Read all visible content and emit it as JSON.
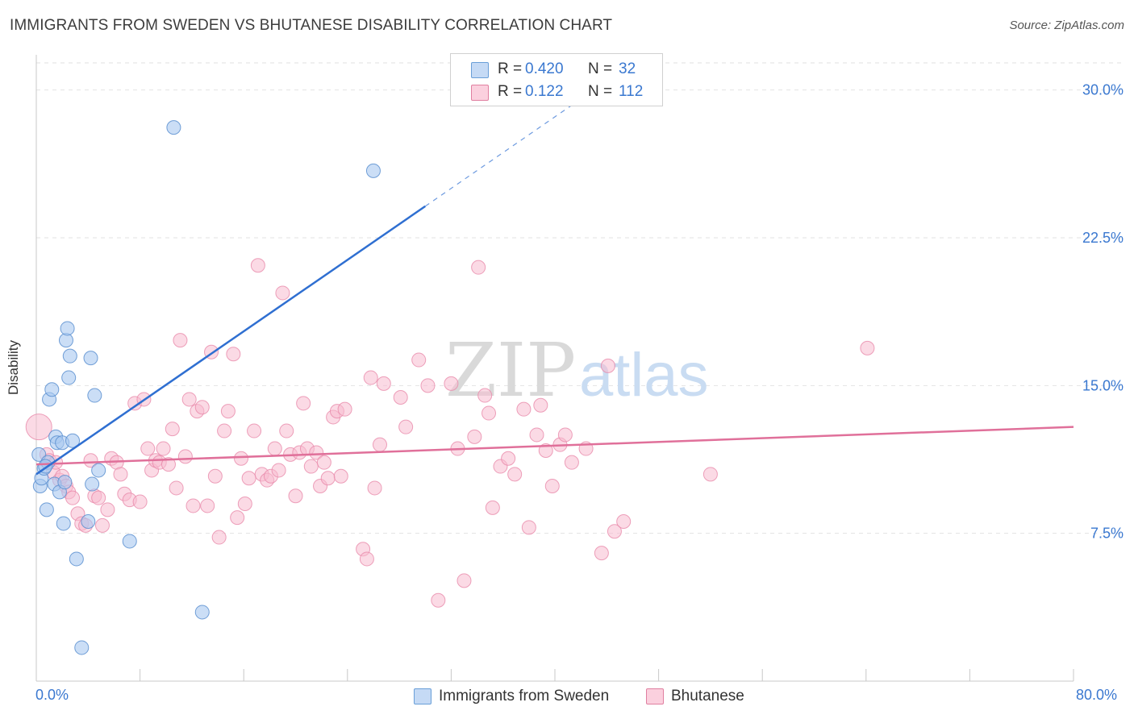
{
  "header": {
    "title": "IMMIGRANTS FROM SWEDEN VS BHUTANESE DISABILITY CORRELATION CHART",
    "source": "Source: ZipAtlas.com"
  },
  "watermark": {
    "zip": "ZIP",
    "atlas": "atlas"
  },
  "legend": {
    "rows": [
      {
        "r_label": "R =",
        "r_value": "0.420",
        "n_label": "N =",
        "n_value": "32",
        "color": "#a8c8f0",
        "border": "#6a9fd8"
      },
      {
        "r_label": "R =",
        "r_value": "0.122",
        "n_label": "N =",
        "n_value": "112",
        "color": "#f7bcd0",
        "border": "#e07fa0"
      }
    ]
  },
  "colors": {
    "sweden_fill": "#a8c8f0",
    "sweden_stroke": "#5b8fd0",
    "sweden_line": "#2f6fd1",
    "bhutanese_fill": "#f7bcd0",
    "bhutanese_stroke": "#e889aa",
    "bhutanese_line": "#e0709a",
    "axis_text": "#3a78d0",
    "grid": "#e2e2e2"
  },
  "chart_data": {
    "type": "scatter",
    "title": "IMMIGRANTS FROM SWEDEN VS BHUTANESE DISABILITY CORRELATION CHART",
    "xlabel": "",
    "ylabel": "Disability",
    "xlim": [
      0,
      80
    ],
    "ylim": [
      0,
      31.5
    ],
    "x_tick_labels": [
      "0.0%",
      "80.0%"
    ],
    "y_ticks": [
      7.5,
      15.0,
      22.5,
      30.0
    ],
    "y_tick_labels": [
      "7.5%",
      "15.0%",
      "22.5%",
      "30.0%"
    ],
    "grid": true,
    "legend_position": "top-center",
    "series": [
      {
        "name": "Immigrants from Sweden",
        "r": 0.42,
        "n": 32,
        "trend": {
          "x": [
            0,
            30
          ],
          "y": [
            10.5,
            24.1
          ]
        },
        "trend_dashed": {
          "x": [
            30,
            43
          ],
          "y": [
            24.1,
            30.0
          ]
        },
        "points": [
          [
            0.2,
            11.5
          ],
          [
            0.3,
            9.9
          ],
          [
            0.4,
            10.3
          ],
          [
            0.6,
            10.8
          ],
          [
            0.8,
            8.7
          ],
          [
            0.9,
            11.1
          ],
          [
            1.0,
            14.3
          ],
          [
            1.2,
            14.8
          ],
          [
            1.4,
            10.0
          ],
          [
            1.5,
            12.4
          ],
          [
            1.6,
            12.1
          ],
          [
            1.8,
            9.6
          ],
          [
            2.0,
            12.1
          ],
          [
            2.1,
            8.0
          ],
          [
            2.2,
            10.1
          ],
          [
            2.3,
            17.3
          ],
          [
            2.4,
            17.9
          ],
          [
            2.5,
            15.4
          ],
          [
            2.6,
            16.5
          ],
          [
            2.8,
            12.2
          ],
          [
            3.1,
            6.2
          ],
          [
            3.5,
            1.7
          ],
          [
            4.0,
            8.1
          ],
          [
            4.2,
            16.4
          ],
          [
            4.3,
            10.0
          ],
          [
            4.5,
            14.5
          ],
          [
            4.8,
            10.7
          ],
          [
            7.2,
            7.1
          ],
          [
            10.6,
            28.1
          ],
          [
            12.8,
            3.5
          ],
          [
            26.0,
            25.9
          ],
          [
            0.7,
            10.9
          ]
        ]
      },
      {
        "name": "Bhutanese",
        "r": 0.122,
        "n": 112,
        "trend": {
          "x": [
            0,
            80
          ],
          "y": [
            11.0,
            12.9
          ]
        },
        "points": [
          [
            0.2,
            12.9
          ],
          [
            0.8,
            11.5
          ],
          [
            1.0,
            11.2
          ],
          [
            1.3,
            10.6
          ],
          [
            1.5,
            11.1
          ],
          [
            1.8,
            10.2
          ],
          [
            2.0,
            10.4
          ],
          [
            2.3,
            9.9
          ],
          [
            2.5,
            9.6
          ],
          [
            2.8,
            9.3
          ],
          [
            3.2,
            8.5
          ],
          [
            3.5,
            8.0
          ],
          [
            3.8,
            7.9
          ],
          [
            4.2,
            11.2
          ],
          [
            4.5,
            9.4
          ],
          [
            4.8,
            9.3
          ],
          [
            5.1,
            7.9
          ],
          [
            5.5,
            8.7
          ],
          [
            5.8,
            11.3
          ],
          [
            6.2,
            11.1
          ],
          [
            6.5,
            10.5
          ],
          [
            6.8,
            9.5
          ],
          [
            7.2,
            9.2
          ],
          [
            7.6,
            14.1
          ],
          [
            8.0,
            9.1
          ],
          [
            8.3,
            14.3
          ],
          [
            8.6,
            11.8
          ],
          [
            8.9,
            10.7
          ],
          [
            9.2,
            11.2
          ],
          [
            9.5,
            11.1
          ],
          [
            9.8,
            11.8
          ],
          [
            10.2,
            11.0
          ],
          [
            10.5,
            12.8
          ],
          [
            10.8,
            9.8
          ],
          [
            11.1,
            17.3
          ],
          [
            11.5,
            11.4
          ],
          [
            11.8,
            14.3
          ],
          [
            12.1,
            8.9
          ],
          [
            12.4,
            13.7
          ],
          [
            12.8,
            13.9
          ],
          [
            13.2,
            8.9
          ],
          [
            13.5,
            16.7
          ],
          [
            13.8,
            10.4
          ],
          [
            14.1,
            7.3
          ],
          [
            14.5,
            12.7
          ],
          [
            14.8,
            13.7
          ],
          [
            15.2,
            16.6
          ],
          [
            15.5,
            8.3
          ],
          [
            15.8,
            11.3
          ],
          [
            16.1,
            9.0
          ],
          [
            16.4,
            10.3
          ],
          [
            16.8,
            12.7
          ],
          [
            17.1,
            21.1
          ],
          [
            17.4,
            10.5
          ],
          [
            17.8,
            10.2
          ],
          [
            18.1,
            10.4
          ],
          [
            18.4,
            11.8
          ],
          [
            18.7,
            10.7
          ],
          [
            19.0,
            19.7
          ],
          [
            19.3,
            12.7
          ],
          [
            19.6,
            11.5
          ],
          [
            20.0,
            9.4
          ],
          [
            20.3,
            11.6
          ],
          [
            20.6,
            14.1
          ],
          [
            20.9,
            11.8
          ],
          [
            21.2,
            10.9
          ],
          [
            21.6,
            11.6
          ],
          [
            21.9,
            9.9
          ],
          [
            22.2,
            11.1
          ],
          [
            22.5,
            10.3
          ],
          [
            22.9,
            13.4
          ],
          [
            23.2,
            13.7
          ],
          [
            23.5,
            10.4
          ],
          [
            23.8,
            13.8
          ],
          [
            25.2,
            6.7
          ],
          [
            25.5,
            6.2
          ],
          [
            25.8,
            15.4
          ],
          [
            26.1,
            9.8
          ],
          [
            26.5,
            12.0
          ],
          [
            26.8,
            15.1
          ],
          [
            28.1,
            14.4
          ],
          [
            28.5,
            12.9
          ],
          [
            29.5,
            16.3
          ],
          [
            30.2,
            15.0
          ],
          [
            31.0,
            4.1
          ],
          [
            32.0,
            15.1
          ],
          [
            32.5,
            11.8
          ],
          [
            33.0,
            5.1
          ],
          [
            33.8,
            12.4
          ],
          [
            34.1,
            21.0
          ],
          [
            34.6,
            14.5
          ],
          [
            34.9,
            13.6
          ],
          [
            35.2,
            8.8
          ],
          [
            35.8,
            10.9
          ],
          [
            36.4,
            11.3
          ],
          [
            36.9,
            10.5
          ],
          [
            37.6,
            13.8
          ],
          [
            38.0,
            7.8
          ],
          [
            38.6,
            12.5
          ],
          [
            38.9,
            14.0
          ],
          [
            39.3,
            11.7
          ],
          [
            39.8,
            9.9
          ],
          [
            40.4,
            12.0
          ],
          [
            40.8,
            12.5
          ],
          [
            41.3,
            11.1
          ],
          [
            42.4,
            11.8
          ],
          [
            43.6,
            6.5
          ],
          [
            44.1,
            16.0
          ],
          [
            44.6,
            7.6
          ],
          [
            45.3,
            8.1
          ],
          [
            52.0,
            10.5
          ],
          [
            64.1,
            16.9
          ]
        ]
      }
    ]
  },
  "bottom_legend": [
    "Immigrants from Sweden",
    "Bhutanese"
  ]
}
